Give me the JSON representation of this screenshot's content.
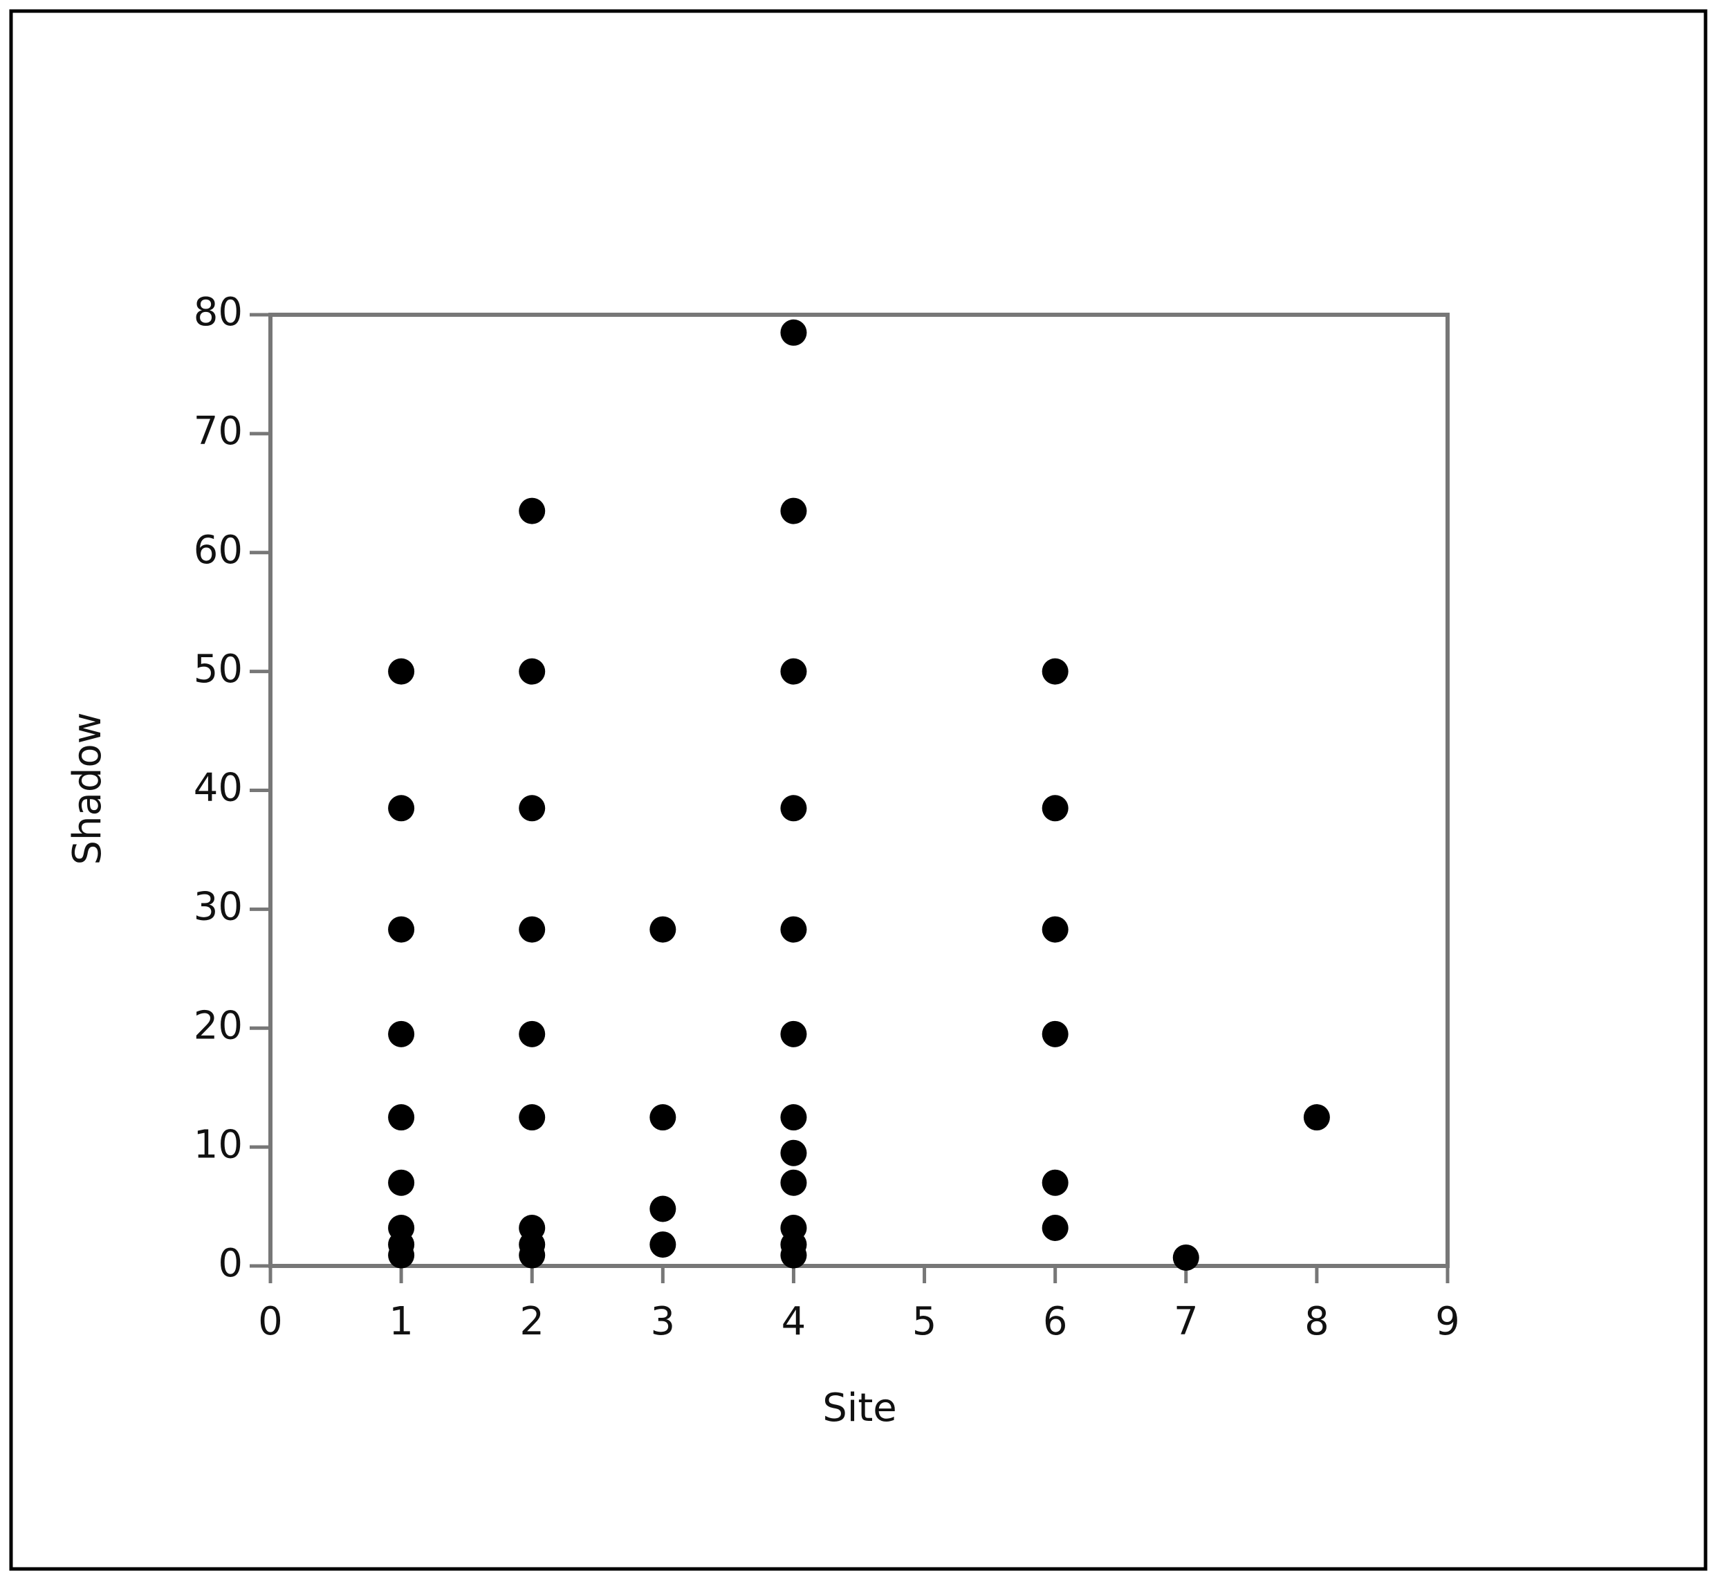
{
  "chart_data": {
    "type": "scatter",
    "x_label": "Site",
    "y_label": "Shadow",
    "x": [
      1,
      1,
      1,
      1,
      1,
      1,
      1,
      1,
      1,
      2,
      2,
      2,
      2,
      2,
      2,
      2,
      2,
      2,
      3,
      3,
      3,
      3,
      4,
      4,
      4,
      4,
      4,
      4,
      4,
      4,
      4,
      4,
      4,
      4,
      6,
      6,
      6,
      6,
      6,
      6,
      7,
      8
    ],
    "values": [
      50,
      38.5,
      28.3,
      19.5,
      12.5,
      7,
      3.2,
      1.8,
      0.9,
      63.5,
      50,
      38.5,
      28.3,
      19.5,
      12.5,
      3.2,
      1.8,
      0.9,
      28.3,
      12.5,
      4.8,
      1.8,
      78.5,
      63.5,
      50,
      38.5,
      28.3,
      19.5,
      12.5,
      9.5,
      7,
      3.2,
      1.8,
      0.9,
      50,
      38.5,
      28.3,
      19.5,
      7,
      3.2,
      0.7,
      12.5
    ],
    "color": "#000000",
    "xlim": [
      0,
      9
    ],
    "xticks": [
      0,
      1,
      2,
      3,
      4,
      5,
      6,
      7,
      8,
      9
    ],
    "ylim": [
      0,
      80
    ],
    "yticks": [
      0,
      10,
      20,
      30,
      40,
      50,
      60,
      70,
      80
    ],
    "grid": false
  }
}
